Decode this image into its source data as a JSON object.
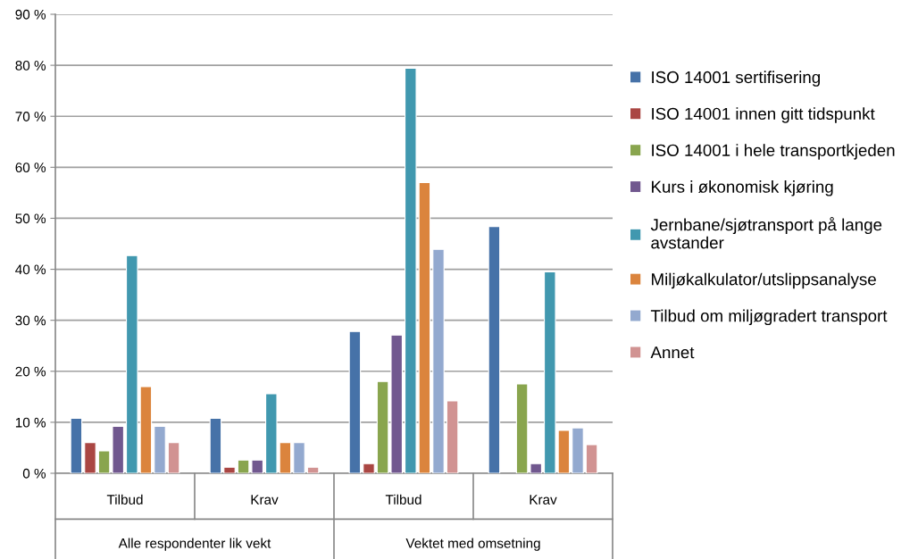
{
  "chart_data": {
    "type": "bar",
    "categories": [
      "Tilbud",
      "Krav",
      "Tilbud",
      "Krav"
    ],
    "annotations": [
      "Alle respondenter lik vekt",
      "Vektet med omsetning"
    ],
    "series": [
      {
        "name": "ISO 14001 sertifisering",
        "color": "#4672a8",
        "values": [
          10.8,
          10.8,
          27.8,
          48.4
        ]
      },
      {
        "name": "ISO 14001 innen gitt tidspunkt",
        "color": "#aa4643",
        "values": [
          6.0,
          1.2,
          1.9,
          null
        ]
      },
      {
        "name": "ISO 14001 i hele transportkjeden",
        "color": "#89a54e",
        "values": [
          4.4,
          2.6,
          18.0,
          17.5
        ]
      },
      {
        "name": "Kurs i økonomisk kjøring",
        "color": "#71588f",
        "values": [
          9.2,
          2.6,
          27.1,
          1.9
        ]
      },
      {
        "name": "Jernbane/sjøtransport på lange avstander",
        "color": "#4198af",
        "values": [
          42.7,
          15.6,
          79.4,
          39.5
        ]
      },
      {
        "name": "Miljøkalkulator/utslippsanalyse",
        "color": "#db843d",
        "values": [
          17.0,
          6.0,
          57.0,
          8.4
        ]
      },
      {
        "name": "Tilbud om miljøgradert transport",
        "color": "#93a9cf",
        "values": [
          9.2,
          6.0,
          43.9,
          8.9
        ]
      },
      {
        "name": "Annet",
        "color": "#d19392",
        "values": [
          6.0,
          1.2,
          14.2,
          5.6
        ]
      }
    ],
    "ylim": [
      0,
      90
    ],
    "yticks": [
      {
        "value": 0,
        "label": "0 %"
      },
      {
        "value": 10,
        "label": "10 %"
      },
      {
        "value": 20,
        "label": "20 %"
      },
      {
        "value": 30,
        "label": "30 %"
      },
      {
        "value": 40,
        "label": "40 %"
      },
      {
        "value": 50,
        "label": "50 %"
      },
      {
        "value": 60,
        "label": "60 %"
      },
      {
        "value": 70,
        "label": "70 %"
      },
      {
        "value": 80,
        "label": "80 %"
      },
      {
        "value": 90,
        "label": "90 %"
      }
    ],
    "grid": "y",
    "legend": "right"
  }
}
